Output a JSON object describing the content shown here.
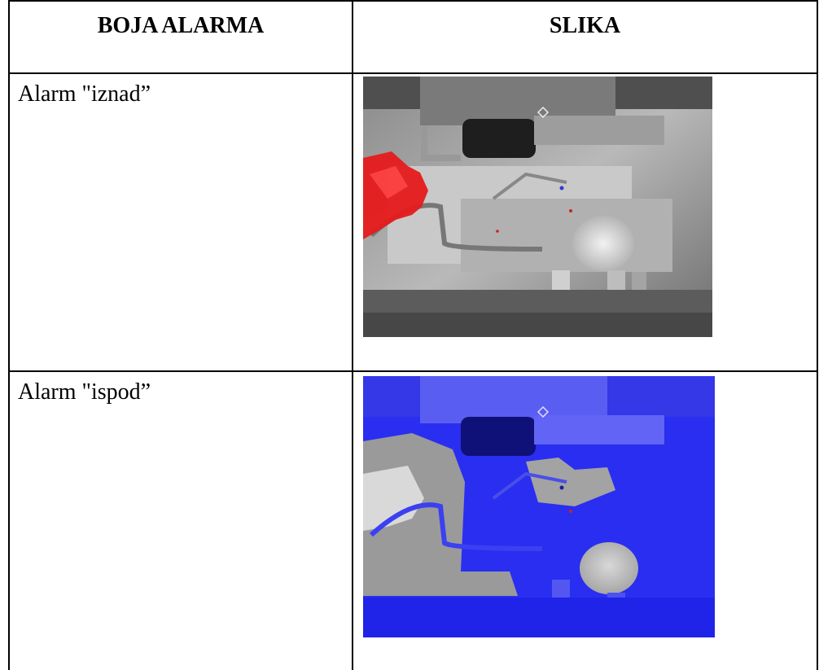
{
  "table": {
    "headers": {
      "col1": "BOJA ALARMA",
      "col2": "SLIKA"
    },
    "rows": [
      {
        "label": "Alarm \"iznad”",
        "image": "thermal-image-above-alarm-red",
        "alarm_color": "#e61b1b"
      },
      {
        "label": "Alarm \"ispod”",
        "image": "thermal-image-below-alarm-blue",
        "alarm_color": "#2a2ef0"
      }
    ]
  }
}
